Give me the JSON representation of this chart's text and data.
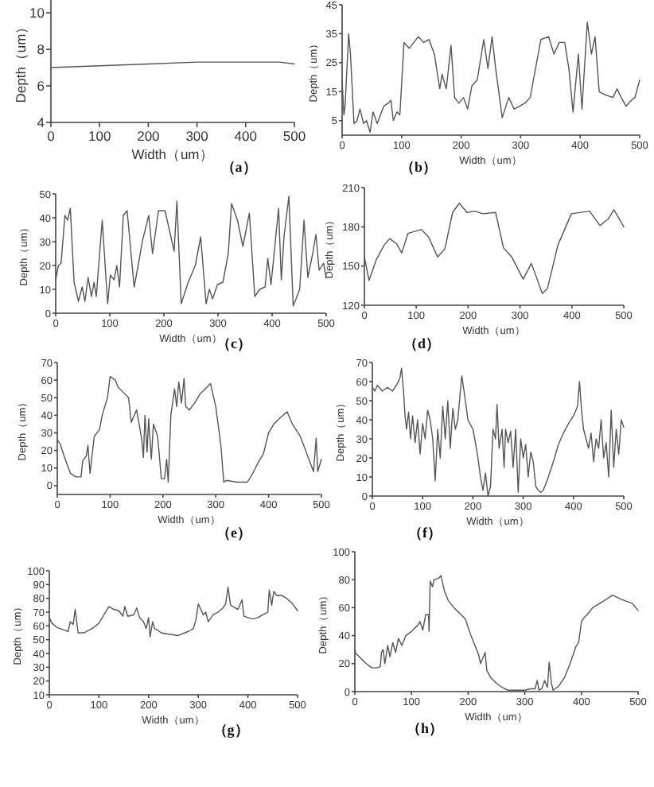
{
  "chart_data": [
    {
      "type": "line",
      "xlabel": "Width（um）",
      "ylabel": "Depth（um）",
      "annotations": [
        "（a）"
      ],
      "xlim": [
        0,
        500
      ],
      "ylim": [
        4,
        10.7
      ],
      "xticks": [
        0,
        100,
        200,
        300,
        400,
        500
      ],
      "yticks": [
        4,
        6,
        8,
        10
      ],
      "x": [
        0,
        100,
        200,
        300,
        400,
        470,
        500
      ],
      "series": [
        {
          "color": "#555555",
          "values": [
            7.0,
            7.1,
            7.2,
            7.3,
            7.3,
            7.3,
            7.2
          ]
        }
      ]
    },
    {
      "type": "line",
      "xlabel": "Width（um）",
      "ylabel": "Depth（um）",
      "annotations": [
        "（b）"
      ],
      "xlim": [
        0,
        500
      ],
      "ylim": [
        0,
        45
      ],
      "xticks": [
        0,
        100,
        200,
        300,
        400,
        500
      ],
      "yticks": [
        5,
        15,
        25,
        35,
        45
      ],
      "x": [
        0,
        3,
        5,
        11,
        14,
        20,
        25,
        30,
        36,
        41,
        47,
        52,
        59,
        70,
        77,
        82,
        86,
        92,
        97,
        104,
        113,
        128,
        137,
        146,
        155,
        164,
        168,
        175,
        183,
        189,
        196,
        204,
        211,
        218,
        227,
        238,
        245,
        252,
        258,
        269,
        280,
        289,
        298,
        307,
        316,
        325,
        334,
        347,
        356,
        365,
        374,
        381,
        388,
        397,
        403,
        412,
        419,
        425,
        432,
        441,
        455,
        462,
        469,
        477,
        486,
        492,
        500
      ],
      "series": [
        {
          "color": "#555555",
          "values": [
            19,
            7,
            10,
            35,
            28,
            4,
            5,
            9,
            4,
            5,
            1,
            8,
            4,
            10,
            11,
            12,
            5,
            8,
            7,
            32,
            30,
            34,
            32,
            33,
            28,
            16,
            21,
            16,
            31,
            13,
            11,
            13,
            9,
            17,
            19,
            33,
            23,
            34,
            23,
            6,
            13,
            9,
            10,
            11,
            13,
            23,
            33,
            34,
            28,
            32,
            32,
            23,
            8,
            28,
            9,
            39,
            28,
            34,
            15,
            14,
            13,
            16,
            13,
            10,
            12,
            13,
            19
          ]
        }
      ]
    },
    {
      "type": "line",
      "xlabel": "Width（um）",
      "ylabel": "Depth（um）",
      "annotations": [
        "（c）"
      ],
      "xlim": [
        0,
        500
      ],
      "ylim": [
        0,
        50
      ],
      "xticks": [
        0,
        100,
        200,
        300,
        400,
        500
      ],
      "yticks": [
        0,
        10,
        20,
        30,
        40,
        50
      ],
      "x": [
        0,
        5,
        10,
        17,
        22,
        27,
        34,
        42,
        49,
        54,
        60,
        66,
        71,
        75,
        86,
        96,
        101,
        108,
        113,
        118,
        125,
        132,
        145,
        154,
        160,
        172,
        179,
        190,
        202,
        209,
        219,
        224,
        232,
        245,
        258,
        268,
        278,
        284,
        290,
        299,
        309,
        319,
        325,
        336,
        346,
        358,
        368,
        377,
        387,
        392,
        398,
        412,
        417,
        422,
        431,
        439,
        451,
        459,
        466,
        475,
        481,
        487,
        495,
        500
      ],
      "series": [
        {
          "color": "#555555",
          "values": [
            14,
            20,
            21,
            41,
            39,
            44,
            13,
            5,
            11,
            5,
            15,
            7,
            13,
            7,
            39,
            4,
            16,
            14,
            20,
            11,
            41,
            43,
            11,
            22,
            30,
            41,
            25,
            43,
            43,
            36,
            26,
            47,
            4,
            13,
            20,
            32,
            4,
            10,
            6,
            12,
            13,
            25,
            46,
            39,
            28,
            42,
            7,
            10,
            11,
            23,
            12,
            44,
            14,
            32,
            49,
            3,
            10,
            39,
            15,
            25,
            33,
            18,
            21,
            15
          ]
        }
      ]
    },
    {
      "type": "line",
      "xlabel": "Width（um）",
      "ylabel": "Depth（um）",
      "annotations": [
        "（d）"
      ],
      "xlim": [
        0,
        500
      ],
      "ylim": [
        120,
        210
      ],
      "xticks": [
        0,
        100,
        200,
        300,
        400,
        500
      ],
      "yticks": [
        120,
        150,
        180,
        210
      ],
      "x": [
        0,
        9,
        23,
        38,
        49,
        62,
        72,
        84,
        110,
        124,
        141,
        155,
        170,
        183,
        198,
        213,
        228,
        253,
        268,
        284,
        306,
        322,
        343,
        353,
        373,
        399,
        434,
        454,
        470,
        481,
        500
      ],
      "series": [
        {
          "color": "#555555",
          "values": [
            157,
            139,
            155,
            166,
            171,
            167,
            160,
            175,
            178,
            172,
            157,
            163,
            191,
            198,
            191,
            192,
            190,
            191,
            164,
            157,
            140,
            152,
            129,
            133,
            166,
            190,
            192,
            181,
            186,
            193,
            180
          ]
        }
      ]
    },
    {
      "type": "line",
      "xlabel": "Width（um）",
      "ylabel": "Depth（um）",
      "annotations": [
        "（e）"
      ],
      "xlim": [
        0,
        500
      ],
      "ylim": [
        -5,
        70
      ],
      "xticks": [
        0,
        100,
        200,
        300,
        400,
        500
      ],
      "yticks": [
        0,
        10,
        20,
        30,
        40,
        50,
        60,
        70
      ],
      "x": [
        0,
        5,
        15,
        25,
        35,
        45,
        48,
        55,
        58,
        62,
        70,
        80,
        85,
        95,
        100,
        110,
        115,
        125,
        135,
        140,
        150,
        155,
        160,
        163,
        166,
        170,
        173,
        178,
        182,
        190,
        197,
        203,
        207,
        210,
        215,
        222,
        226,
        230,
        235,
        240,
        243,
        250,
        260,
        270,
        280,
        290,
        300,
        310,
        315,
        320,
        340,
        360,
        370,
        380,
        390,
        400,
        410,
        420,
        435,
        445,
        460,
        470,
        480,
        485,
        490,
        493,
        500
      ],
      "series": [
        {
          "color": "#555555",
          "values": [
            26,
            24,
            15,
            7,
            5,
            5,
            14,
            17,
            23,
            7,
            28,
            32,
            40,
            50,
            62,
            60,
            56,
            53,
            50,
            36,
            43,
            35,
            26,
            16,
            40,
            19,
            38,
            15,
            35,
            28,
            4,
            4,
            15,
            2,
            40,
            55,
            45,
            59,
            47,
            61,
            45,
            43,
            47,
            52,
            55,
            58,
            45,
            22,
            2,
            3,
            2,
            2,
            7,
            13,
            18,
            30,
            35,
            38,
            42,
            35,
            28,
            20,
            12,
            8,
            27,
            8,
            15
          ]
        }
      ]
    },
    {
      "type": "line",
      "xlabel": "Width（um）",
      "ylabel": "Depth（um）",
      "annotations": [
        "（f）"
      ],
      "xlim": [
        0,
        500
      ],
      "ylim": [
        0,
        70
      ],
      "xticks": [
        0,
        100,
        200,
        300,
        400,
        500
      ],
      "yticks": [
        0,
        10,
        20,
        30,
        40,
        50,
        60,
        70
      ],
      "x": [
        0,
        5,
        10,
        20,
        30,
        40,
        50,
        55,
        58,
        62,
        65,
        68,
        72,
        76,
        80,
        85,
        90,
        95,
        100,
        105,
        110,
        115,
        120,
        125,
        130,
        135,
        140,
        145,
        150,
        155,
        160,
        165,
        170,
        175,
        178,
        185,
        190,
        200,
        205,
        210,
        215,
        220,
        225,
        230,
        235,
        240,
        245,
        248,
        252,
        258,
        262,
        265,
        270,
        275,
        280,
        285,
        290,
        295,
        300,
        305,
        310,
        315,
        320,
        325,
        330,
        335,
        340,
        350,
        360,
        370,
        380,
        390,
        400,
        408,
        412,
        416,
        420,
        425,
        430,
        435,
        440,
        445,
        450,
        455,
        460,
        465,
        470,
        475,
        480,
        485,
        490,
        495,
        500
      ],
      "series": [
        {
          "color": "#555555",
          "values": [
            57,
            55,
            58,
            55,
            57,
            55,
            59,
            62,
            67,
            55,
            42,
            35,
            44,
            30,
            42,
            28,
            40,
            22,
            38,
            30,
            45,
            40,
            30,
            8,
            35,
            20,
            47,
            30,
            50,
            25,
            46,
            35,
            40,
            55,
            63,
            50,
            40,
            35,
            28,
            20,
            10,
            3,
            12,
            0,
            5,
            35,
            30,
            48,
            25,
            35,
            15,
            35,
            28,
            34,
            15,
            35,
            2,
            30,
            20,
            27,
            10,
            23,
            18,
            5,
            3,
            2,
            3,
            10,
            18,
            27,
            33,
            38,
            42,
            47,
            60,
            45,
            35,
            30,
            25,
            33,
            18,
            30,
            25,
            40,
            20,
            28,
            10,
            45,
            15,
            35,
            22,
            40,
            36
          ]
        }
      ]
    },
    {
      "type": "line",
      "xlabel": "Width（um）",
      "ylabel": "Depth（um）",
      "annotations": [
        "（g）"
      ],
      "xlim": [
        0,
        500
      ],
      "ylim": [
        10,
        100
      ],
      "xticks": [
        0,
        100,
        200,
        300,
        400,
        500
      ],
      "yticks": [
        10,
        20,
        30,
        40,
        50,
        60,
        70,
        80,
        90,
        100
      ],
      "x": [
        0,
        5,
        15,
        30,
        38,
        42,
        48,
        52,
        58,
        70,
        80,
        90,
        100,
        110,
        120,
        130,
        140,
        148,
        152,
        158,
        170,
        176,
        182,
        190,
        195,
        200,
        203,
        208,
        212,
        218,
        225,
        240,
        260,
        280,
        290,
        295,
        300,
        305,
        310,
        315,
        320,
        330,
        340,
        350,
        355,
        360,
        365,
        370,
        380,
        388,
        392,
        400,
        410,
        420,
        430,
        440,
        443,
        448,
        452,
        458,
        468,
        478,
        490,
        500
      ],
      "series": [
        {
          "color": "#555555",
          "values": [
            66,
            62,
            59,
            57,
            56,
            63,
            61,
            72,
            55,
            55,
            57,
            59,
            62,
            68,
            74,
            72,
            71,
            67,
            74,
            67,
            68,
            73,
            66,
            63,
            58,
            66,
            52,
            63,
            58,
            57,
            55,
            54,
            53,
            56,
            58,
            64,
            76,
            72,
            68,
            70,
            63,
            68,
            70,
            73,
            76,
            88,
            75,
            74,
            72,
            79,
            67,
            66,
            65,
            66,
            68,
            70,
            86,
            75,
            85,
            82,
            82,
            80,
            76,
            71
          ]
        }
      ]
    },
    {
      "type": "line",
      "xlabel": "Width（um）",
      "ylabel": "Depth（um）",
      "annotations": [
        "（h）"
      ],
      "xlim": [
        0,
        500
      ],
      "ylim": [
        0,
        100
      ],
      "xticks": [
        0,
        100,
        200,
        300,
        400,
        500
      ],
      "yticks": [
        0,
        20,
        40,
        60,
        80,
        100
      ],
      "x": [
        0,
        2,
        5,
        10,
        20,
        30,
        40,
        45,
        47,
        50,
        53,
        58,
        62,
        67,
        72,
        77,
        83,
        90,
        100,
        110,
        115,
        120,
        125,
        130,
        131,
        133,
        137,
        140,
        148,
        152,
        158,
        165,
        175,
        185,
        195,
        205,
        212,
        218,
        222,
        230,
        233,
        240,
        250,
        260,
        270,
        280,
        300,
        310,
        318,
        322,
        325,
        330,
        335,
        340,
        343,
        347,
        350,
        360,
        370,
        380,
        390,
        395,
        400,
        405,
        410,
        420,
        440,
        455,
        470,
        490,
        500
      ],
      "series": [
        {
          "color": "#555555",
          "values": [
            30,
            27,
            26,
            24,
            20,
            17,
            17,
            18,
            28,
            30,
            20,
            33,
            25,
            35,
            28,
            38,
            33,
            40,
            43,
            47,
            50,
            44,
            55,
            55,
            43,
            79,
            75,
            80,
            81,
            83,
            72,
            65,
            60,
            56,
            52,
            40,
            33,
            27,
            20,
            28,
            15,
            10,
            6,
            3,
            1,
            1,
            1,
            2,
            2,
            8,
            1,
            2,
            8,
            3,
            21,
            6,
            1,
            4,
            10,
            20,
            32,
            35,
            50,
            53,
            55,
            60,
            65,
            69,
            66,
            63,
            58
          ]
        }
      ]
    }
  ]
}
